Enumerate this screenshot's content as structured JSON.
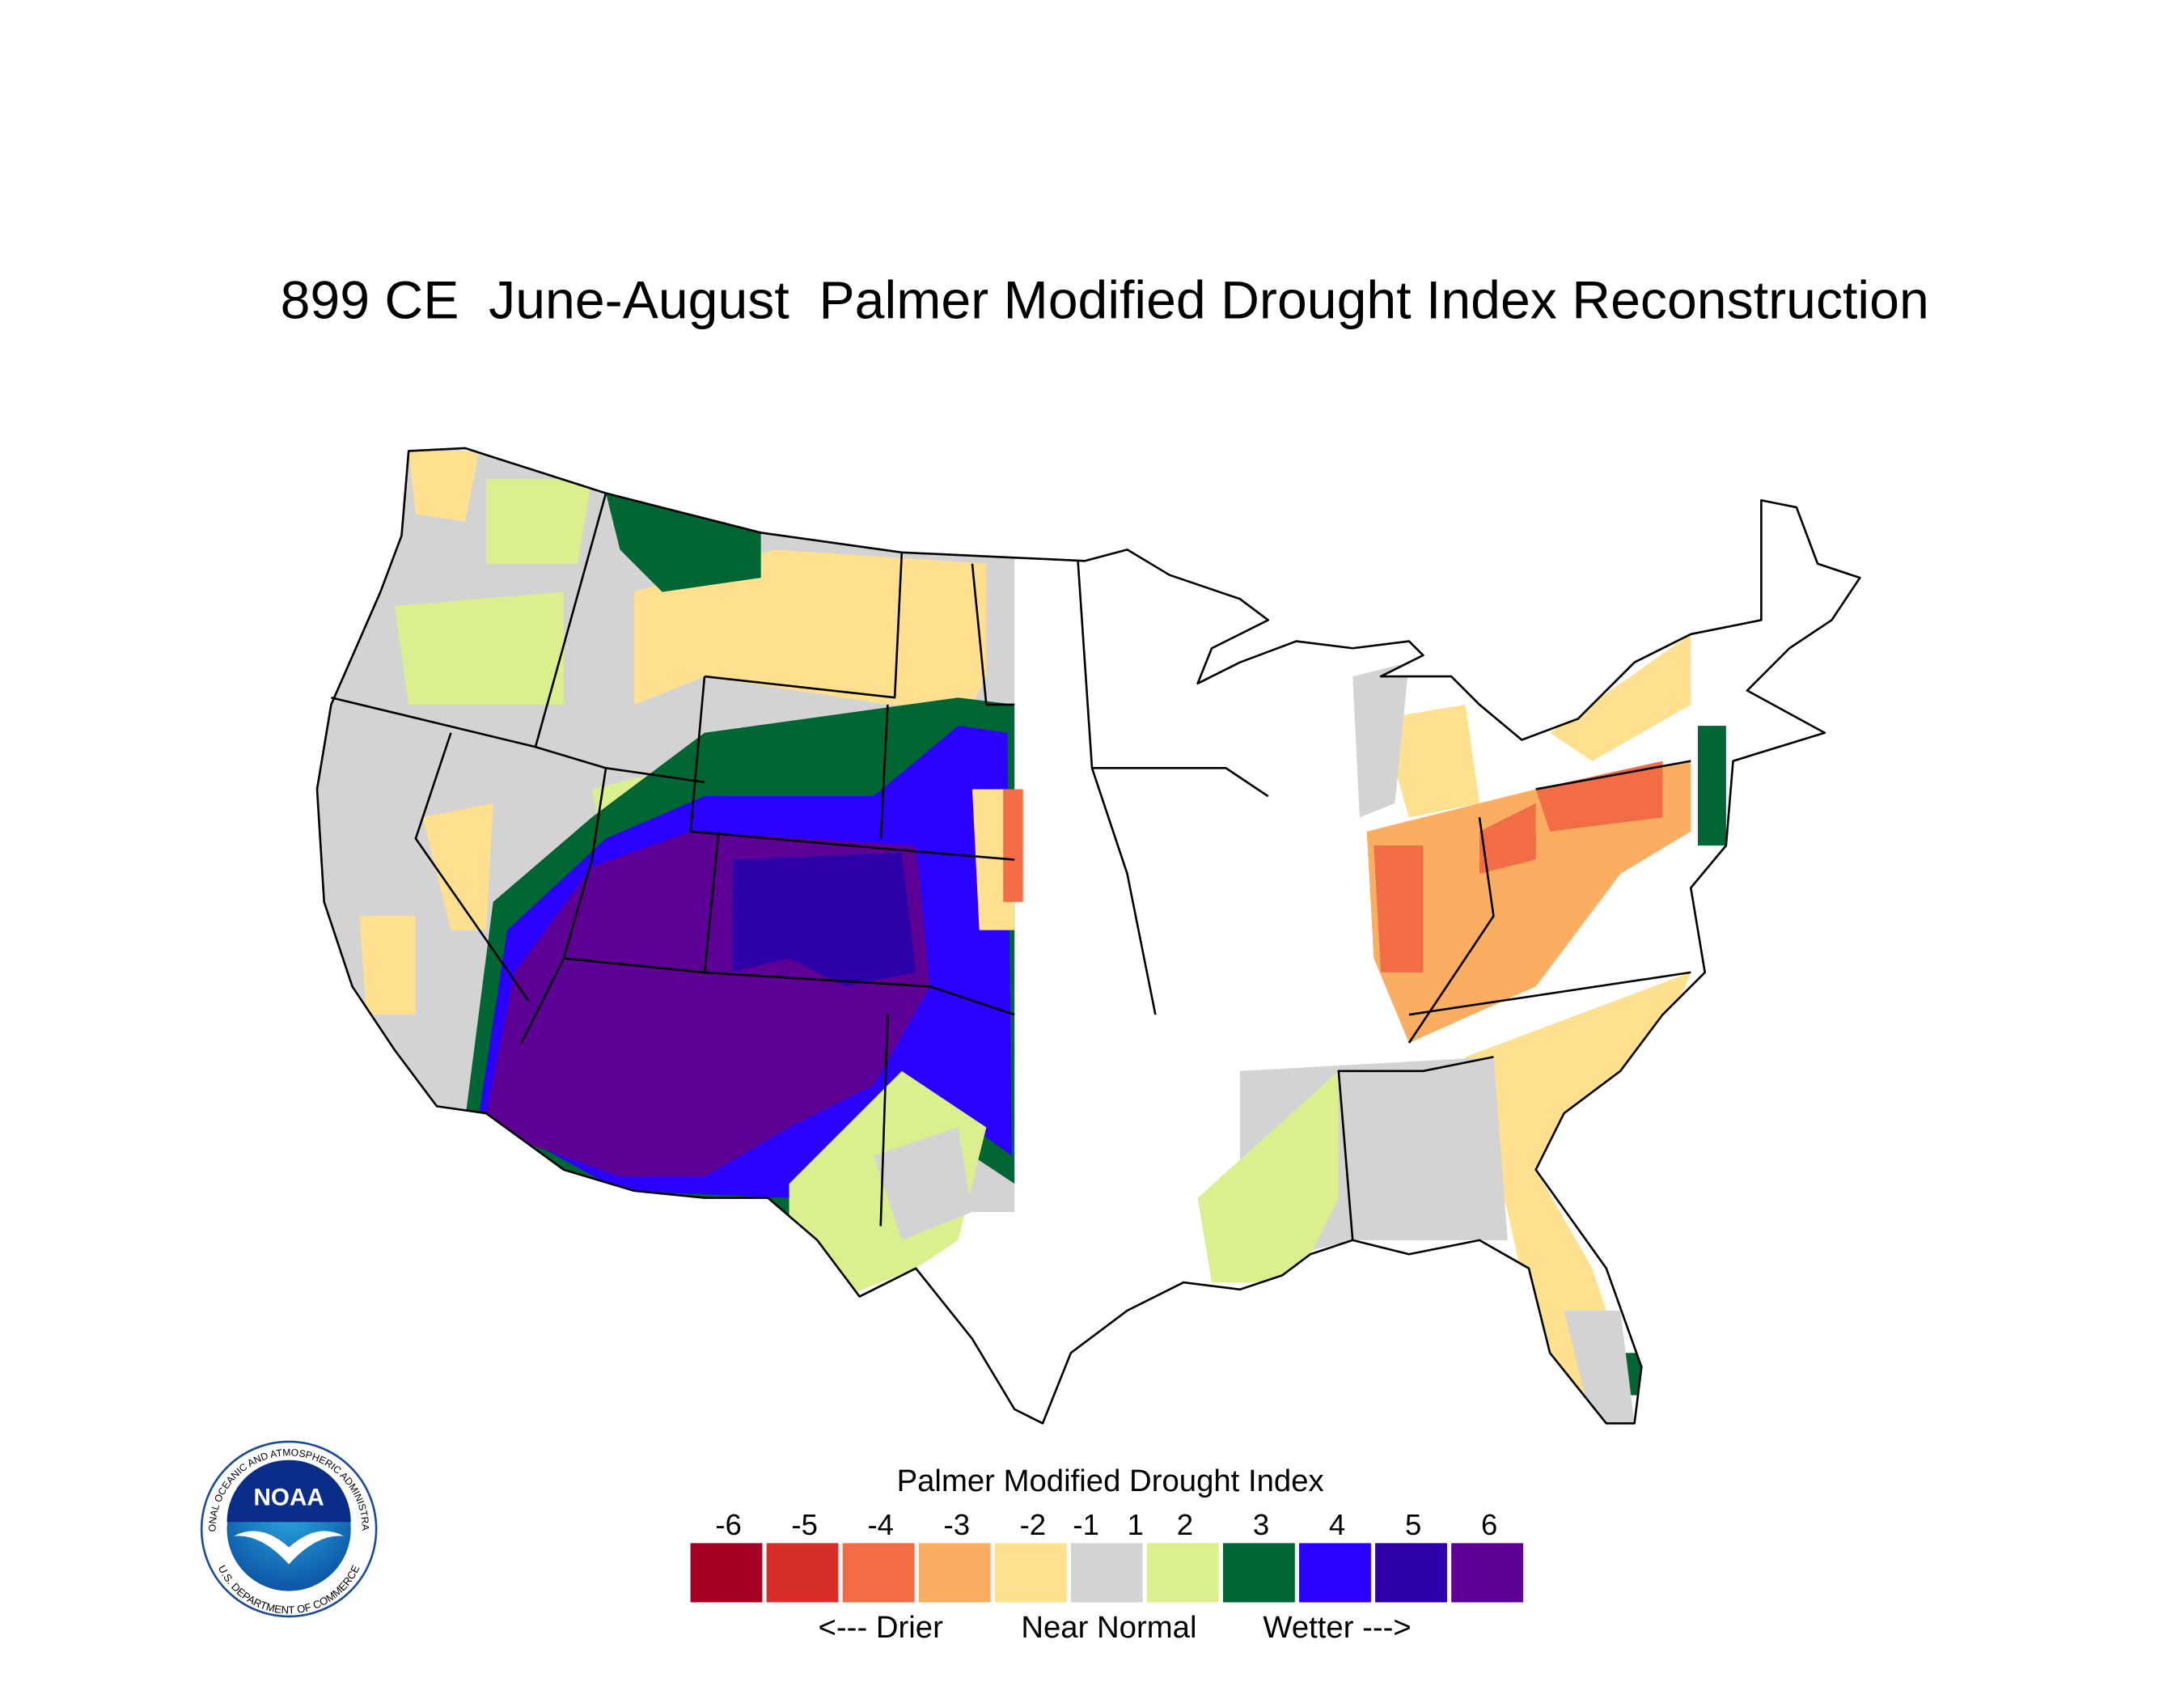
{
  "title": "899 CE  June-August  Palmer Modified Drought Index Reconstruction",
  "legend": {
    "title": "Palmer Modified Drought Index",
    "ticks": [
      -6,
      -5,
      -4,
      -3,
      -2,
      -1,
      1,
      2,
      3,
      4,
      5,
      6
    ],
    "colors": [
      "#a50021",
      "#d82e28",
      "#f26d45",
      "#fbad61",
      "#fee08f",
      "#d3d3d3",
      "#dbef8f",
      "#006633",
      "#2a00ff",
      "#2e00a8",
      "#5e0096"
    ],
    "captions": [
      "<--- Drier",
      "Near Normal",
      "Wetter --->"
    ]
  },
  "logo": {
    "name": "NOAA",
    "ring_top": "NATIONAL OCEANIC AND ATMOSPHERIC ADMINISTRATION",
    "ring_bottom": "U.S. DEPARTMENT OF COMMERCE"
  }
}
